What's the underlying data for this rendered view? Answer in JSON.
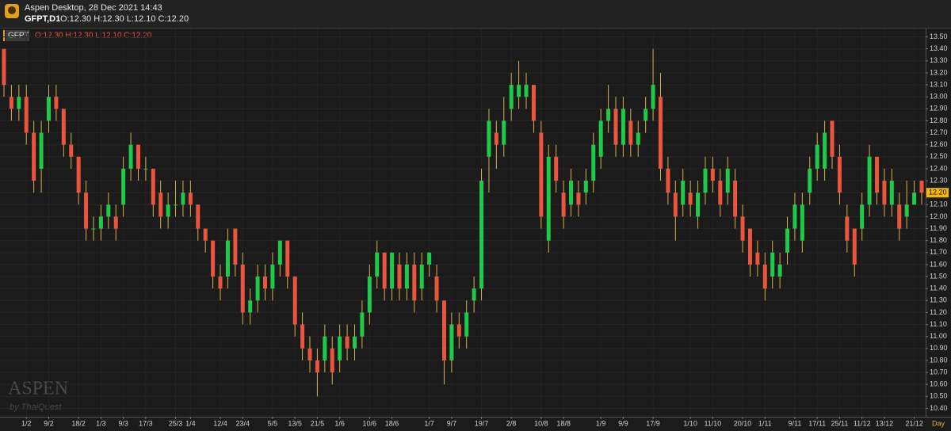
{
  "window": {
    "title": "Aspen Desktop, 28 Dec 2021 14:43",
    "symbol": "GFPT,D1",
    "ohlc": "O:12.30 H:12.30 L:12.10 C:12.20"
  },
  "watermark": {
    "brand": "ASPEN",
    "maker": "by ThaiQuest"
  },
  "chart_data": {
    "type": "candlestick",
    "legend": "GFPT",
    "legend_ohlc": "O:12.30 H:12.30 L:12.10 C:12.20",
    "x_unit": "Day",
    "up_color": "#1fc94a",
    "down_color": "#e9553d",
    "wick_color": "#d8b04a",
    "grid": true,
    "categories": [
      null,
      null,
      null,
      "1/2",
      null,
      null,
      "9/2",
      null,
      null,
      null,
      "18/2",
      null,
      null,
      "1/3",
      null,
      null,
      "9/3",
      null,
      null,
      "17/3",
      null,
      null,
      null,
      "25/3",
      null,
      "1/4",
      null,
      null,
      null,
      "12/4",
      null,
      null,
      "23/4",
      null,
      null,
      null,
      "5/5",
      null,
      null,
      "13/5",
      null,
      null,
      "21/5",
      null,
      null,
      "1/6",
      null,
      null,
      null,
      "10/6",
      null,
      null,
      "18/6",
      null,
      null,
      null,
      null,
      "1/7",
      null,
      null,
      "9/7",
      null,
      null,
      null,
      "19/7",
      null,
      null,
      null,
      "2/8",
      null,
      null,
      null,
      "10/8",
      null,
      null,
      "18/8",
      null,
      null,
      null,
      null,
      "1/9",
      null,
      null,
      "9/9",
      null,
      null,
      null,
      "17/9",
      null,
      null,
      null,
      null,
      "1/10",
      null,
      null,
      "11/10",
      null,
      null,
      null,
      "20/10",
      null,
      null,
      "1/11",
      null,
      null,
      null,
      "9/11",
      null,
      null,
      "17/11",
      null,
      null,
      "25/11",
      null,
      null,
      "11/12",
      null,
      null,
      "13/12",
      null,
      null,
      null,
      "21/12",
      null
    ],
    "open": [
      13.4,
      13.0,
      12.9,
      13.0,
      12.7,
      12.4,
      12.8,
      13.0,
      12.9,
      12.6,
      12.5,
      12.2,
      11.9,
      11.9,
      12.0,
      12.0,
      12.1,
      12.4,
      12.6,
      12.4,
      12.4,
      12.2,
      12.0,
      12.1,
      12.1,
      12.2,
      12.1,
      11.9,
      11.8,
      11.5,
      11.5,
      11.9,
      11.6,
      11.2,
      11.3,
      11.5,
      11.4,
      11.6,
      11.8,
      11.5,
      11.1,
      10.9,
      10.8,
      10.8,
      10.9,
      10.8,
      11.0,
      10.9,
      11.0,
      11.2,
      11.5,
      11.7,
      11.4,
      11.6,
      11.4,
      11.6,
      11.4,
      11.6,
      11.5,
      11.3,
      10.8,
      11.1,
      11.0,
      11.3,
      11.4,
      12.5,
      12.7,
      12.6,
      12.9,
      13.0,
      13.0,
      13.1,
      12.7,
      11.8,
      12.5,
      12.2,
      12.1,
      12.2,
      12.2,
      12.3,
      12.5,
      12.8,
      12.9,
      12.6,
      12.8,
      12.6,
      12.8,
      12.9,
      13.0,
      12.4,
      12.2,
      12.1,
      12.2,
      12.0,
      12.2,
      12.4,
      12.3,
      12.2,
      12.3,
      12.0,
      11.9,
      11.7,
      11.6,
      11.5,
      11.5,
      11.7,
      11.9,
      11.8,
      12.2,
      12.4,
      12.4,
      12.8,
      12.5,
      12.0,
      11.9,
      11.9,
      12.1,
      12.5,
      12.3,
      12.1,
      12.1,
      12.0,
      12.1,
      12.3
    ],
    "high": [
      13.4,
      13.1,
      13.1,
      13.1,
      12.8,
      12.8,
      13.1,
      13.1,
      12.9,
      12.7,
      12.5,
      12.3,
      12.0,
      12.1,
      12.2,
      12.1,
      12.5,
      12.7,
      12.6,
      12.5,
      12.4,
      12.3,
      12.2,
      12.3,
      12.3,
      12.3,
      12.1,
      11.9,
      11.8,
      11.6,
      11.9,
      11.9,
      11.7,
      11.4,
      11.6,
      11.6,
      11.7,
      11.8,
      11.8,
      11.5,
      11.2,
      11.0,
      10.9,
      11.1,
      11.0,
      11.1,
      11.1,
      11.1,
      11.3,
      11.6,
      11.8,
      11.7,
      11.7,
      11.7,
      11.7,
      11.7,
      11.7,
      11.7,
      11.6,
      11.3,
      11.2,
      11.2,
      11.3,
      11.5,
      12.4,
      12.9,
      12.8,
      13.0,
      13.2,
      13.3,
      13.2,
      13.1,
      12.8,
      12.6,
      12.6,
      12.3,
      12.4,
      12.3,
      12.4,
      12.7,
      12.9,
      13.1,
      13.0,
      13.0,
      12.9,
      12.8,
      13.0,
      13.4,
      13.2,
      12.5,
      12.3,
      12.4,
      12.3,
      12.3,
      12.5,
      12.5,
      12.4,
      12.5,
      12.4,
      12.1,
      11.9,
      11.8,
      11.7,
      11.8,
      11.7,
      12.0,
      12.2,
      12.2,
      12.5,
      12.7,
      12.8,
      12.8,
      12.6,
      12.1,
      11.9,
      12.2,
      12.6,
      12.5,
      12.4,
      12.4,
      12.2,
      12.3,
      12.3,
      12.3
    ],
    "low": [
      13.0,
      12.8,
      12.8,
      12.6,
      12.2,
      12.2,
      12.7,
      12.8,
      12.5,
      12.4,
      12.1,
      11.8,
      11.8,
      11.8,
      11.9,
      11.8,
      12.0,
      12.3,
      12.3,
      12.3,
      12.0,
      11.9,
      11.9,
      12.0,
      12.0,
      12.0,
      11.8,
      11.7,
      11.4,
      11.3,
      11.4,
      11.5,
      11.1,
      11.1,
      11.2,
      11.3,
      11.3,
      11.5,
      11.4,
      11.0,
      10.8,
      10.7,
      10.5,
      10.7,
      10.6,
      10.7,
      10.8,
      10.8,
      10.9,
      11.1,
      11.4,
      11.3,
      11.3,
      11.3,
      11.3,
      11.2,
      11.3,
      11.5,
      11.2,
      10.6,
      10.7,
      10.9,
      10.9,
      11.2,
      11.3,
      12.2,
      12.4,
      12.5,
      12.8,
      12.9,
      12.9,
      12.7,
      11.9,
      11.7,
      12.2,
      11.9,
      12.0,
      12.0,
      12.1,
      12.2,
      12.4,
      12.7,
      12.5,
      12.5,
      12.5,
      12.5,
      12.7,
      12.8,
      12.3,
      12.1,
      11.8,
      12.0,
      12.0,
      11.9,
      12.1,
      12.2,
      12.0,
      12.1,
      11.9,
      11.7,
      11.5,
      11.5,
      11.3,
      11.4,
      11.4,
      11.6,
      11.8,
      11.7,
      12.1,
      12.3,
      12.3,
      12.4,
      12.1,
      11.7,
      11.5,
      11.8,
      12.0,
      12.1,
      12.0,
      12.0,
      11.8,
      11.9,
      12.1,
      12.1
    ],
    "close": [
      13.1,
      12.9,
      13.0,
      12.7,
      12.3,
      12.7,
      13.0,
      12.9,
      12.6,
      12.5,
      12.2,
      11.9,
      11.9,
      12.0,
      12.1,
      11.9,
      12.4,
      12.6,
      12.4,
      12.4,
      12.1,
      12.0,
      12.1,
      12.1,
      12.2,
      12.1,
      11.9,
      11.8,
      11.5,
      11.4,
      11.8,
      11.6,
      11.2,
      11.3,
      11.5,
      11.4,
      11.6,
      11.8,
      11.5,
      11.1,
      10.9,
      10.8,
      10.7,
      11.0,
      10.7,
      11.0,
      10.9,
      11.0,
      11.2,
      11.5,
      11.7,
      11.4,
      11.7,
      11.4,
      11.6,
      11.3,
      11.6,
      11.7,
      11.3,
      10.8,
      11.1,
      11.0,
      11.2,
      11.4,
      12.3,
      12.8,
      12.6,
      12.8,
      13.1,
      13.1,
      13.1,
      12.8,
      12.0,
      12.5,
      12.3,
      12.0,
      12.3,
      12.1,
      12.3,
      12.6,
      12.8,
      12.9,
      12.6,
      12.9,
      12.6,
      12.7,
      12.9,
      13.1,
      12.4,
      12.2,
      12.0,
      12.3,
      12.1,
      12.2,
      12.4,
      12.3,
      12.1,
      12.4,
      12.0,
      11.8,
      11.6,
      11.6,
      11.4,
      11.7,
      11.6,
      11.9,
      12.1,
      12.1,
      12.4,
      12.6,
      12.7,
      12.5,
      12.2,
      11.8,
      11.6,
      12.1,
      12.5,
      12.2,
      12.1,
      12.3,
      11.9,
      12.1,
      12.2,
      12.2
    ],
    "ylim": [
      10.33,
      13.57
    ],
    "yticks": [
      {
        "value": 10.4,
        "label": "10.40"
      },
      {
        "value": 10.5,
        "label": "10.50"
      },
      {
        "value": 10.6,
        "label": "10.60"
      },
      {
        "value": 10.7,
        "label": "10.70"
      },
      {
        "value": 10.8,
        "label": "10.80"
      },
      {
        "value": 10.9,
        "label": "10.90"
      },
      {
        "value": 11.0,
        "label": "11.00"
      },
      {
        "value": 11.1,
        "label": "11.10"
      },
      {
        "value": 11.2,
        "label": "11.20"
      },
      {
        "value": 11.3,
        "label": "11.30"
      },
      {
        "value": 11.4,
        "label": "11.40"
      },
      {
        "value": 11.5,
        "label": "11.50"
      },
      {
        "value": 11.6,
        "label": "11.60"
      },
      {
        "value": 11.7,
        "label": "11.70"
      },
      {
        "value": 11.8,
        "label": "11.80"
      },
      {
        "value": 11.9,
        "label": "11.90"
      },
      {
        "value": 12.0,
        "label": "12.00"
      },
      {
        "value": 12.1,
        "label": "12.10"
      },
      {
        "value": 12.2,
        "label": "12.20"
      },
      {
        "value": 12.3,
        "label": "12.30"
      },
      {
        "value": 12.4,
        "label": "12.40"
      },
      {
        "value": 12.5,
        "label": "12.50"
      },
      {
        "value": 12.6,
        "label": "12.60"
      },
      {
        "value": 12.7,
        "label": "12.70"
      },
      {
        "value": 12.8,
        "label": "12.80"
      },
      {
        "value": 12.9,
        "label": "12.90"
      },
      {
        "value": 13.0,
        "label": "13.00"
      },
      {
        "value": 13.1,
        "label": "13.10"
      },
      {
        "value": 13.2,
        "label": "13.20"
      },
      {
        "value": 13.3,
        "label": "13.30"
      },
      {
        "value": 13.4,
        "label": "13.40"
      },
      {
        "value": 13.5,
        "label": "13.50"
      }
    ],
    "last_price": {
      "value": 12.2,
      "label": "12.20"
    }
  }
}
